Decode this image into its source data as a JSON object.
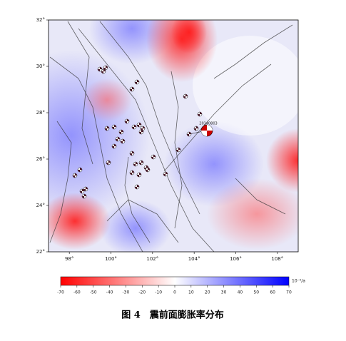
{
  "map": {
    "xlim": [
      97,
      109
    ],
    "ylim": [
      22,
      32
    ],
    "xticks": [
      {
        "value": 98,
        "label": "98°"
      },
      {
        "value": 100,
        "label": "100°"
      },
      {
        "value": 102,
        "label": "102°"
      },
      {
        "value": 104,
        "label": "104°"
      },
      {
        "value": 106,
        "label": "106°"
      },
      {
        "value": 108,
        "label": "108°"
      }
    ],
    "yticks": [
      {
        "value": 22,
        "label": "22°"
      },
      {
        "value": 24,
        "label": "24°"
      },
      {
        "value": 26,
        "label": "26°"
      },
      {
        "value": 28,
        "label": "28°"
      },
      {
        "value": 30,
        "label": "30°"
      },
      {
        "value": 32,
        "label": "32°"
      }
    ],
    "annotation": "20140803"
  },
  "colorbar": {
    "lim": [
      -70,
      70
    ],
    "ticks": [
      -70,
      -60,
      -50,
      -40,
      -30,
      -20,
      -10,
      0,
      10,
      20,
      30,
      40,
      50,
      60,
      70
    ],
    "colors": [
      "#ff0000",
      "#ffffff",
      "#0000ff"
    ],
    "unit": "10⁻⁹/a"
  },
  "caption": "图 4　震前面膨胀率分布"
}
